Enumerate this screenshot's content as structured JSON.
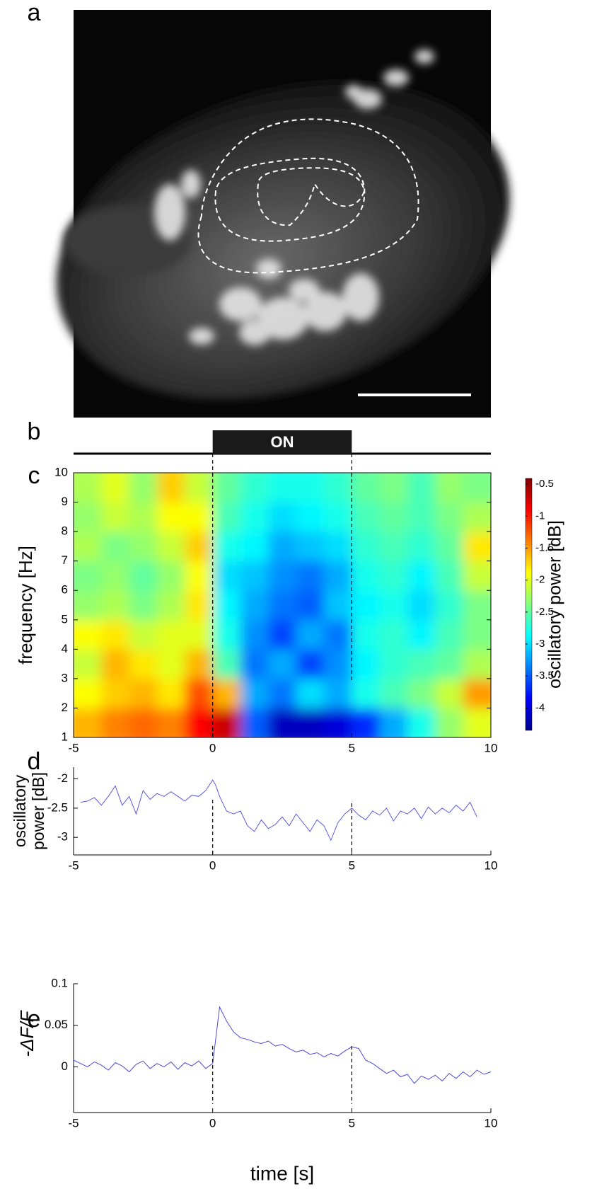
{
  "panel_labels": [
    "a",
    "b",
    "c",
    "d",
    "e"
  ],
  "stimulus": {
    "label": "ON",
    "start": 0,
    "end": 5
  },
  "chart_data": [
    {
      "type": "heatmap",
      "ylabel": "frequency [Hz]",
      "colorbar_label": "oscillatory power [dB]",
      "colormap": "jet",
      "x_edges": [
        -5,
        -4,
        -3,
        -2,
        -1,
        0,
        1,
        2,
        3,
        4,
        5,
        6,
        7,
        8,
        9,
        10
      ],
      "y_edges": [
        1,
        2,
        3,
        4,
        5,
        6,
        7,
        8,
        9,
        10
      ],
      "values": [
        [
          -1.6,
          -1.4,
          -1.3,
          -1.4,
          -0.9,
          -0.7,
          -3.5,
          -4.1,
          -4.1,
          -4.0,
          -3.7,
          -3.2,
          -2.8,
          -2.3,
          -2.0
        ],
        [
          -1.9,
          -1.7,
          -1.6,
          -1.8,
          -1.2,
          -1.6,
          -3.2,
          -3.4,
          -3.0,
          -3.2,
          -2.8,
          -2.6,
          -2.4,
          -2.1,
          -1.5
        ],
        [
          -2.1,
          -1.6,
          -1.8,
          -2.0,
          -1.6,
          -2.6,
          -3.4,
          -3.2,
          -3.6,
          -3.3,
          -2.9,
          -2.7,
          -2.6,
          -2.5,
          -2.2
        ],
        [
          -1.9,
          -1.8,
          -2.1,
          -2.0,
          -2.0,
          -2.8,
          -3.3,
          -3.6,
          -3.2,
          -3.4,
          -2.8,
          -2.7,
          -2.9,
          -2.6,
          -2.4
        ],
        [
          -2.3,
          -2.2,
          -2.4,
          -2.2,
          -1.8,
          -2.9,
          -3.2,
          -3.4,
          -3.5,
          -3.1,
          -2.9,
          -2.8,
          -3.0,
          -2.7,
          -2.4
        ],
        [
          -2.4,
          -2.3,
          -2.5,
          -2.3,
          -1.9,
          -3.0,
          -3.1,
          -3.3,
          -3.4,
          -3.2,
          -2.8,
          -2.7,
          -2.9,
          -2.6,
          -2.1
        ],
        [
          -2.2,
          -2.4,
          -2.3,
          -2.1,
          -1.7,
          -2.8,
          -2.9,
          -3.2,
          -3.1,
          -3.0,
          -2.7,
          -2.6,
          -2.7,
          -2.5,
          -1.8
        ],
        [
          -2.3,
          -2.1,
          -2.2,
          -1.9,
          -1.9,
          -2.6,
          -2.8,
          -3.0,
          -2.9,
          -2.8,
          -2.6,
          -2.5,
          -2.6,
          -2.4,
          -2.2
        ],
        [
          -2.2,
          -2.0,
          -2.3,
          -1.7,
          -2.1,
          -2.5,
          -2.7,
          -2.8,
          -2.8,
          -2.7,
          -2.5,
          -2.4,
          -2.6,
          -2.3,
          -2.4
        ]
      ],
      "xlim": [
        -5,
        10
      ],
      "xticks": [
        -5,
        0,
        5,
        10
      ],
      "ylim": [
        1,
        10
      ],
      "yticks": [
        1,
        2,
        3,
        4,
        5,
        6,
        7,
        8,
        9,
        10
      ],
      "clim": [
        -4.35,
        -0.41
      ],
      "cticks": [
        -0.5,
        -1,
        -1.5,
        -2,
        -2.5,
        -3,
        -3.5,
        -4
      ]
    },
    {
      "type": "line",
      "ylabel": [
        "oscillatory",
        "power [dB]"
      ],
      "color": "#5a5ae0",
      "x": [
        -4.75,
        -4.5,
        -4.25,
        -4,
        -3.75,
        -3.5,
        -3.25,
        -3,
        -2.75,
        -2.5,
        -2.25,
        -2,
        -1.75,
        -1.5,
        -1.25,
        -1,
        -0.75,
        -0.5,
        -0.25,
        0,
        0.1,
        0.25,
        0.5,
        0.75,
        1,
        1.25,
        1.5,
        1.75,
        2,
        2.25,
        2.5,
        2.75,
        3,
        3.25,
        3.5,
        3.75,
        4,
        4.25,
        4.5,
        4.75,
        5,
        5.25,
        5.5,
        5.75,
        6,
        6.25,
        6.5,
        6.75,
        7,
        7.25,
        7.5,
        7.75,
        8,
        8.25,
        8.5,
        8.75,
        9,
        9.25,
        9.5
      ],
      "values": [
        -2.4,
        -2.38,
        -2.32,
        -2.45,
        -2.3,
        -2.12,
        -2.45,
        -2.3,
        -2.6,
        -2.2,
        -2.35,
        -2.25,
        -2.3,
        -2.22,
        -2.3,
        -2.38,
        -2.28,
        -2.3,
        -2.2,
        -2.02,
        -2.1,
        -2.3,
        -2.55,
        -2.6,
        -2.55,
        -2.8,
        -2.9,
        -2.7,
        -2.85,
        -2.78,
        -2.65,
        -2.8,
        -2.6,
        -2.75,
        -2.9,
        -2.7,
        -2.8,
        -3.05,
        -2.75,
        -2.6,
        -2.5,
        -2.62,
        -2.7,
        -2.55,
        -2.62,
        -2.5,
        -2.72,
        -2.55,
        -2.6,
        -2.5,
        -2.68,
        -2.48,
        -2.6,
        -2.5,
        -2.58,
        -2.45,
        -2.55,
        -2.4,
        -2.65
      ],
      "xlim": [
        -5,
        10
      ],
      "xticks": [
        -5,
        0,
        5,
        10
      ],
      "ylim": [
        -3.3,
        -1.8
      ],
      "yticks": [
        -2,
        -2.5,
        -3
      ]
    },
    {
      "type": "line",
      "ylabel": "-ΔF/F",
      "xlabel": "time [s]",
      "color": "#4a4ad8",
      "x": [
        -5,
        -4.75,
        -4.5,
        -4.25,
        -4,
        -3.75,
        -3.5,
        -3.25,
        -3,
        -2.75,
        -2.5,
        -2.25,
        -2,
        -1.75,
        -1.5,
        -1.25,
        -1,
        -0.75,
        -0.5,
        -0.25,
        0,
        0.25,
        0.5,
        0.75,
        1,
        1.25,
        1.5,
        1.75,
        2,
        2.25,
        2.5,
        2.75,
        3,
        3.25,
        3.5,
        3.75,
        4,
        4.25,
        4.5,
        4.75,
        5,
        5.25,
        5.5,
        5.75,
        6,
        6.25,
        6.5,
        6.75,
        7,
        7.25,
        7.5,
        7.75,
        8,
        8.25,
        8.5,
        8.75,
        9,
        9.25,
        9.5,
        9.75,
        10
      ],
      "values": [
        0.008,
        0.004,
        0.0,
        0.006,
        0.002,
        -0.004,
        0.005,
        0.001,
        -0.006,
        0.003,
        0.007,
        -0.002,
        0.004,
        0.0,
        0.006,
        -0.003,
        0.005,
        0.001,
        0.007,
        -0.002,
        0.004,
        0.072,
        0.055,
        0.042,
        0.035,
        0.033,
        0.03,
        0.028,
        0.031,
        0.025,
        0.027,
        0.022,
        0.018,
        0.02,
        0.015,
        0.017,
        0.012,
        0.016,
        0.013,
        0.019,
        0.024,
        0.022,
        0.008,
        0.004,
        -0.002,
        -0.008,
        -0.004,
        -0.012,
        -0.009,
        -0.02,
        -0.011,
        -0.015,
        -0.01,
        -0.017,
        -0.008,
        -0.014,
        -0.006,
        -0.012,
        -0.004,
        -0.009,
        -0.006
      ],
      "xlim": [
        -5,
        10
      ],
      "xticks": [
        -5,
        0,
        5,
        10
      ],
      "ylim": [
        -0.055,
        0.1
      ],
      "yticks": [
        0,
        0.05,
        0.1
      ]
    }
  ]
}
